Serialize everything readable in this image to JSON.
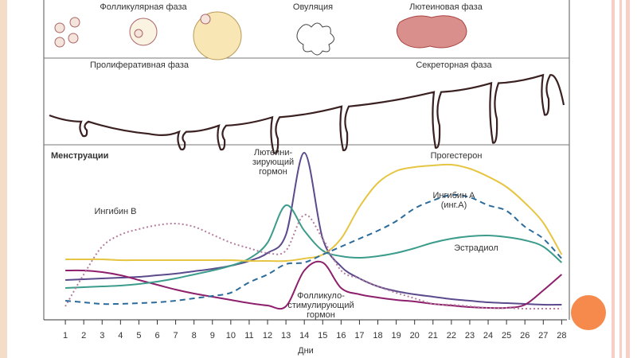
{
  "illustration": {
    "ovary_phases": [
      "Фолликулярная фаза",
      "Овуляция",
      "Лютеиновая фаза"
    ],
    "endometrium_phases": [
      "Пролиферативная фаза",
      "Секреторная фаза"
    ],
    "menstruation": "Менструации"
  },
  "chart_data": {
    "type": "line",
    "x_label": "Дни",
    "x": [
      1,
      2,
      3,
      4,
      5,
      6,
      7,
      8,
      9,
      10,
      11,
      12,
      13,
      14,
      15,
      16,
      17,
      18,
      19,
      20,
      21,
      22,
      23,
      24,
      25,
      26,
      27,
      28
    ],
    "xlim": [
      0,
      28.2
    ],
    "xticks": [
      1,
      2,
      3,
      4,
      5,
      6,
      7,
      8,
      9,
      10,
      11,
      12,
      13,
      14,
      15,
      16,
      17,
      18,
      19,
      20,
      21,
      22,
      23,
      24,
      25,
      26,
      27,
      28
    ],
    "ylim": [
      0,
      215
    ],
    "series": [
      {
        "name": "Лютеини-\nзирующий\nгормон",
        "color": "#5b4a8c",
        "style": "solid",
        "values": [
          48,
          49,
          50,
          51,
          52,
          54,
          56,
          59,
          62,
          66,
          72,
          82,
          105,
          208,
          100,
          65,
          50,
          40,
          34,
          30,
          27,
          24,
          22,
          20,
          19,
          18,
          17,
          17
        ]
      },
      {
        "name": "Фолликуло-\nстимулирующий\nгормон",
        "color": "#8e1f6c",
        "style": "solid",
        "values": [
          60,
          60,
          58,
          54,
          48,
          42,
          36,
          31,
          27,
          23,
          19,
          16,
          15,
          60,
          70,
          38,
          30,
          26,
          23,
          21,
          18,
          16,
          14,
          13,
          13,
          17,
          35,
          55
        ]
      },
      {
        "name": "Эстрадиол",
        "color": "#3c9c8c",
        "style": "solid",
        "values": [
          38,
          39,
          40,
          41,
          43,
          46,
          50,
          55,
          60,
          66,
          75,
          95,
          142,
          110,
          85,
          78,
          76,
          78,
          82,
          88,
          95,
          100,
          103,
          104,
          102,
          98,
          90,
          70
        ]
      },
      {
        "name": "Прогестерон",
        "color": "#e6c542",
        "style": "solid",
        "values": [
          74,
          74,
          74,
          73,
          73,
          73,
          73,
          73,
          73,
          73,
          72,
          72,
          72,
          75,
          80,
          100,
          140,
          170,
          185,
          190,
          192,
          193,
          188,
          178,
          165,
          145,
          120,
          80
        ]
      },
      {
        "name": "Ингибин В",
        "color": "#b57d9d",
        "style": "dotted",
        "values": [
          15,
          55,
          90,
          105,
          112,
          117,
          119,
          115,
          105,
          95,
          88,
          82,
          85,
          130,
          100,
          60,
          50,
          40,
          32,
          25,
          18,
          17,
          15,
          13,
          13,
          12,
          12,
          12
        ]
      },
      {
        "name": "Ингибин А\n(инг.А)",
        "color": "#2b6b9b",
        "style": "dashed",
        "values": [
          22,
          20,
          18,
          18,
          19,
          20,
          22,
          25,
          28,
          32,
          45,
          55,
          68,
          70,
          80,
          90,
          100,
          110,
          122,
          138,
          148,
          155,
          152,
          142,
          135,
          115,
          100,
          75
        ]
      }
    ]
  }
}
